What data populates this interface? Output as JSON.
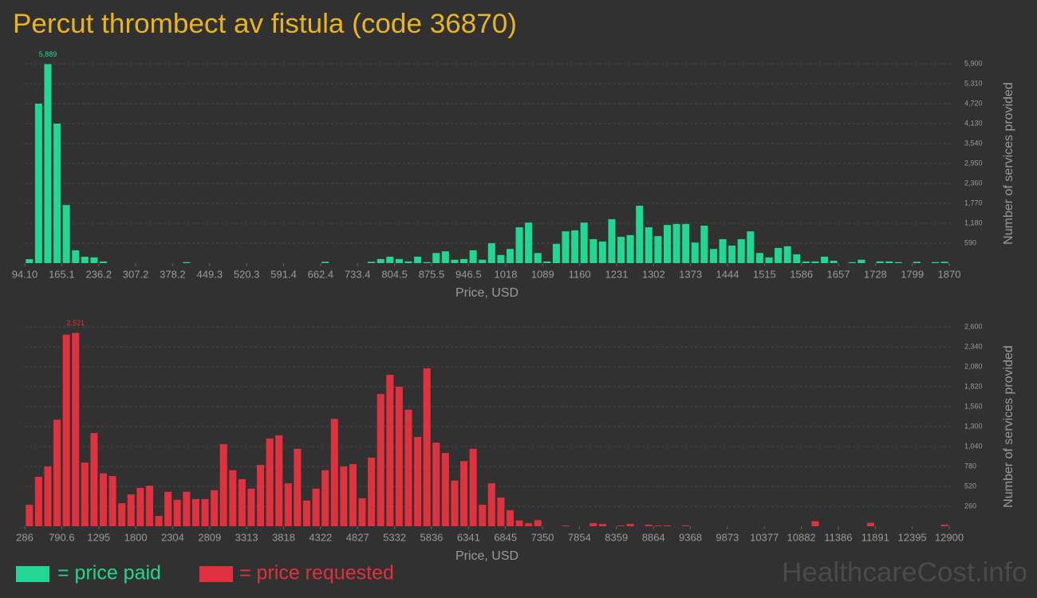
{
  "title": "Percut thrombect av fistula (code 36870)",
  "watermark": "HealthcareCost.info",
  "chart_data": [
    {
      "type": "histogram",
      "x_label": "Price, USD",
      "y_label": "Number of services provided",
      "grid": true,
      "bins": [
        94.1,
        111.9,
        129.6,
        147.4,
        165.1,
        182.9,
        200.7,
        218.4,
        236.2,
        253.9,
        271.7,
        289.5,
        307.2,
        325.0,
        342.7,
        360.5,
        378.2,
        396.0,
        413.8,
        431.5,
        449.3,
        467.0,
        484.8,
        502.6,
        520.3,
        538.1,
        555.9,
        573.6,
        591.4,
        609.1,
        626.9,
        644.6,
        662.4,
        680.1,
        697.9,
        715.7,
        733.4,
        751.2,
        769.0,
        786.7,
        804.5,
        822.2,
        840.0,
        857.7,
        875.5,
        893.3,
        911.0,
        928.8,
        946.5,
        964.3,
        982.1,
        999.8,
        1017.6,
        1035.3,
        1053.1,
        1070.9,
        1088.6,
        1106.4,
        1124.1,
        1141.9,
        1159.6,
        1177.4,
        1195.2,
        1212.9,
        1230.7,
        1248.4,
        1266.2,
        1284.0,
        1301.7,
        1319.5,
        1337.2,
        1355.0,
        1372.8,
        1390.5,
        1408.3,
        1426.0,
        1443.8,
        1461.5,
        1479.3,
        1497.1,
        1514.8,
        1532.6,
        1550.4,
        1568.1,
        1585.9,
        1603.6,
        1621.4,
        1639.2,
        1656.9,
        1674.7,
        1692.4,
        1710.2,
        1727.9,
        1745.7,
        1763.5,
        1781.2,
        1799.0,
        1816.7,
        1834.5,
        1852.2,
        1870
      ],
      "series": [
        {
          "name": "= price paid",
          "color": "#22d693",
          "values": [
            118,
            4720,
            5889,
            4130,
            1720,
            380,
            190,
            170,
            50,
            0,
            0,
            0,
            0,
            0,
            0,
            0,
            0,
            30,
            0,
            0,
            0,
            0,
            0,
            0,
            0,
            0,
            0,
            0,
            0,
            0,
            0,
            0,
            40,
            0,
            0,
            0,
            0,
            40,
            120,
            190,
            120,
            50,
            190,
            30,
            300,
            350,
            100,
            120,
            380,
            100,
            590,
            240,
            420,
            1060,
            1200,
            300,
            50,
            570,
            940,
            970,
            1200,
            710,
            640,
            1300,
            780,
            830,
            1700,
            1060,
            800,
            1130,
            1160,
            1160,
            610,
            1110,
            420,
            710,
            520,
            710,
            940,
            300,
            170,
            450,
            500,
            260,
            50,
            50,
            190,
            70,
            0,
            30,
            100,
            0,
            50,
            50,
            30,
            0,
            40,
            0,
            30,
            40
          ],
          "value_labels": [
            null,
            null,
            "5,889",
            null,
            null,
            null,
            null,
            null,
            null,
            null,
            null,
            null,
            null,
            null,
            null,
            null,
            null,
            null,
            null,
            null,
            null,
            null,
            null,
            null,
            null,
            null,
            null,
            null,
            null,
            null,
            null,
            null,
            null,
            null,
            null,
            null,
            null,
            null,
            null,
            null,
            null,
            null,
            null,
            null,
            null,
            null,
            null,
            null,
            null,
            null,
            null,
            null,
            null,
            null,
            null,
            null,
            null,
            null,
            null,
            null,
            null,
            null,
            null,
            null,
            null,
            null,
            null,
            null,
            null,
            null,
            null,
            null,
            null,
            null,
            null,
            null,
            null,
            null,
            null,
            null,
            null,
            null,
            null,
            null,
            null,
            null,
            null,
            null,
            null,
            null,
            null,
            null,
            null,
            null,
            null,
            null,
            null,
            null,
            null,
            null
          ]
        }
      ],
      "xlim": [
        94.1,
        1870
      ],
      "xticks": [
        {
          "value": 94.1,
          "label": "94.10"
        },
        165.1,
        236.2,
        307.2,
        378.2,
        449.3,
        520.3,
        591.4,
        662.4,
        733.4,
        804.5,
        875.5,
        946.5,
        1018,
        1089,
        1160,
        1231,
        1302,
        1373,
        1444,
        1515,
        1586,
        1657,
        1728,
        1799,
        1870
      ],
      "ylim": [
        0,
        5900
      ],
      "yticks": [
        590,
        {
          "value": 1180,
          "label": "1,180"
        },
        {
          "value": 1770,
          "label": "1,770"
        },
        {
          "value": 2360,
          "label": "2,360"
        },
        {
          "value": 2950,
          "label": "2,950"
        },
        {
          "value": 3540,
          "label": "3,540"
        },
        {
          "value": 4130,
          "label": "4,130"
        },
        {
          "value": 4720,
          "label": "4,720"
        },
        {
          "value": 5310,
          "label": "5,310"
        },
        {
          "value": 5900,
          "label": "5,900"
        }
      ]
    },
    {
      "type": "histogram",
      "x_label": "Price, USD",
      "y_label": "Number of services provided",
      "grid": true,
      "bins": [
        286,
        412.1,
        538.3,
        664.4,
        790.6,
        916.7,
        1042.8,
        1169.0,
        1295.1,
        1421.3,
        1547.4,
        1673.5,
        1799.7,
        1925.8,
        2052.0,
        2178.1,
        2304.2,
        2430.4,
        2556.5,
        2682.7,
        2808.8,
        2934.9,
        3061.1,
        3187.2,
        3313.4,
        3439.5,
        3565.6,
        3691.8,
        3817.9,
        3944.1,
        4070.2,
        4196.3,
        4322.5,
        4448.6,
        4574.8,
        4700.9,
        4827.0,
        4953.2,
        5079.3,
        5205.5,
        5331.6,
        5457.7,
        5583.9,
        5710.0,
        5836.2,
        5962.3,
        6088.4,
        6214.6,
        6340.7,
        6466.9,
        6593.0,
        6719.1,
        6845.3,
        6971.4,
        7097.6,
        7223.7,
        7349.8,
        7476.0,
        7602.1,
        7728.3,
        7854.4,
        7980.5,
        8106.7,
        8232.8,
        8359.0,
        8485.1,
        8611.2,
        8737.4,
        8863.5,
        8989.7,
        9115.8,
        9241.9,
        9368.1,
        9494.2,
        9620.4,
        9746.5,
        9872.6,
        9998.8,
        10124.9,
        10251.1,
        10377.2,
        10503.3,
        10629.5,
        10755.6,
        10881.8,
        11007.9,
        11134.0,
        11260.2,
        11386.3,
        11512.5,
        11638.6,
        11764.7,
        11890.9,
        12017.0,
        12143.2,
        12269.3,
        12395.4,
        12521.6,
        12647.7,
        12773.9,
        12900
      ],
      "series": [
        {
          "name": "= price requested",
          "color": "#e0313f",
          "values": [
            280,
            645,
            780,
            1390,
            2500,
            2521,
            830,
            1215,
            690,
            655,
            300,
            415,
            500,
            530,
            135,
            450,
            345,
            450,
            355,
            355,
            470,
            1070,
            730,
            615,
            490,
            800,
            1145,
            1185,
            560,
            1010,
            335,
            490,
            730,
            1400,
            780,
            810,
            365,
            895,
            1725,
            1975,
            1820,
            1520,
            1165,
            2060,
            1090,
            955,
            595,
            850,
            1010,
            280,
            560,
            375,
            210,
            75,
            40,
            80,
            0,
            0,
            10,
            0,
            0,
            40,
            30,
            0,
            10,
            30,
            0,
            20,
            10,
            10,
            0,
            10,
            0,
            0,
            0,
            0,
            0,
            0,
            0,
            0,
            0,
            0,
            0,
            0,
            0,
            65,
            0,
            0,
            0,
            0,
            0,
            45,
            0,
            0,
            0,
            0,
            0,
            0,
            0,
            20
          ],
          "value_labels": [
            null,
            null,
            null,
            null,
            null,
            "2,521",
            null,
            null,
            null,
            null,
            null,
            null,
            null,
            null,
            null,
            null,
            null,
            null,
            null,
            null,
            null,
            null,
            null,
            null,
            null,
            null,
            null,
            null,
            null,
            null,
            null,
            null,
            null,
            null,
            null,
            null,
            null,
            null,
            null,
            null,
            null,
            null,
            null,
            null,
            null,
            null,
            null,
            null,
            null,
            null,
            null,
            null,
            null,
            null,
            null,
            null,
            null,
            null,
            null,
            null,
            null,
            null,
            null,
            null,
            null,
            null,
            null,
            null,
            null,
            null,
            null,
            null,
            null,
            null,
            null,
            null,
            null,
            null,
            null,
            null,
            null,
            null,
            null,
            null,
            null,
            null,
            null,
            null,
            null,
            null,
            null,
            null,
            null,
            null,
            null,
            null,
            null,
            null,
            null,
            null
          ]
        }
      ],
      "xlim": [
        286,
        12900
      ],
      "xticks": [
        286,
        790.6,
        1295,
        1800,
        2304,
        2809,
        3313,
        3818,
        4322,
        4827,
        5332,
        5836,
        6341,
        6845,
        7350,
        7854,
        8359,
        8864,
        9368,
        9873,
        10377,
        10882,
        11386,
        11891,
        12395,
        12900
      ],
      "ylim": [
        0,
        2600
      ],
      "yticks": [
        260,
        520,
        780,
        {
          "value": 1040,
          "label": "1,040"
        },
        {
          "value": 1300,
          "label": "1,300"
        },
        {
          "value": 1560,
          "label": "1,560"
        },
        {
          "value": 1820,
          "label": "1,820"
        },
        {
          "value": 2080,
          "label": "2,080"
        },
        {
          "value": 2340,
          "label": "2,340"
        },
        {
          "value": 2600,
          "label": "2,600"
        }
      ]
    }
  ]
}
